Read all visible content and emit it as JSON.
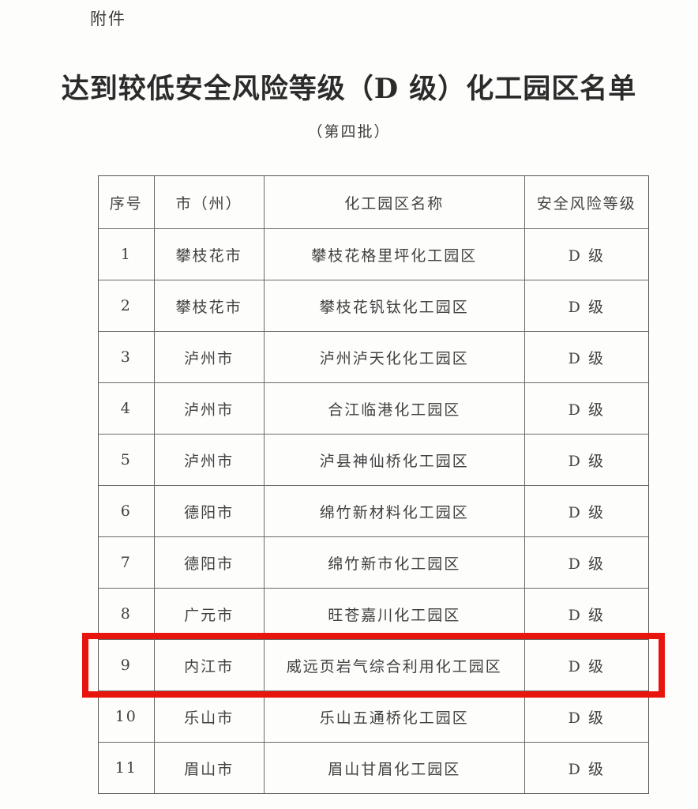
{
  "page": {
    "attachment_label": "附件",
    "title": "达到较低安全风险等级（D 级）化工园区名单",
    "subtitle": "（第四批）"
  },
  "table": {
    "headers": {
      "no": "序号",
      "city": "市（州）",
      "park": "化工园区名称",
      "level": "安全风险等级"
    },
    "rows": [
      {
        "no": "1",
        "city": "攀枝花市",
        "park": "攀枝花格里坪化工园区",
        "level": "D 级"
      },
      {
        "no": "2",
        "city": "攀枝花市",
        "park": "攀枝花钒钛化工园区",
        "level": "D 级"
      },
      {
        "no": "3",
        "city": "泸州市",
        "park": "泸州泸天化化工园区",
        "level": "D 级"
      },
      {
        "no": "4",
        "city": "泸州市",
        "park": "合江临港化工园区",
        "level": "D 级"
      },
      {
        "no": "5",
        "city": "泸州市",
        "park": "泸县神仙桥化工园区",
        "level": "D 级"
      },
      {
        "no": "6",
        "city": "德阳市",
        "park": "绵竹新材料化工园区",
        "level": "D 级"
      },
      {
        "no": "7",
        "city": "德阳市",
        "park": "绵竹新市化工园区",
        "level": "D 级"
      },
      {
        "no": "8",
        "city": "广元市",
        "park": "旺苍嘉川化工园区",
        "level": "D 级"
      },
      {
        "no": "9",
        "city": "内江市",
        "park": "威远页岩气综合利用化工园区",
        "level": "D 级"
      },
      {
        "no": "10",
        "city": "乐山市",
        "park": "乐山五通桥化工园区",
        "level": "D 级"
      },
      {
        "no": "11",
        "city": "眉山市",
        "park": "眉山甘眉化工园区",
        "level": "D 级"
      }
    ],
    "highlighted_row_no": "9"
  },
  "colors": {
    "highlight_border": "#e8150f"
  }
}
